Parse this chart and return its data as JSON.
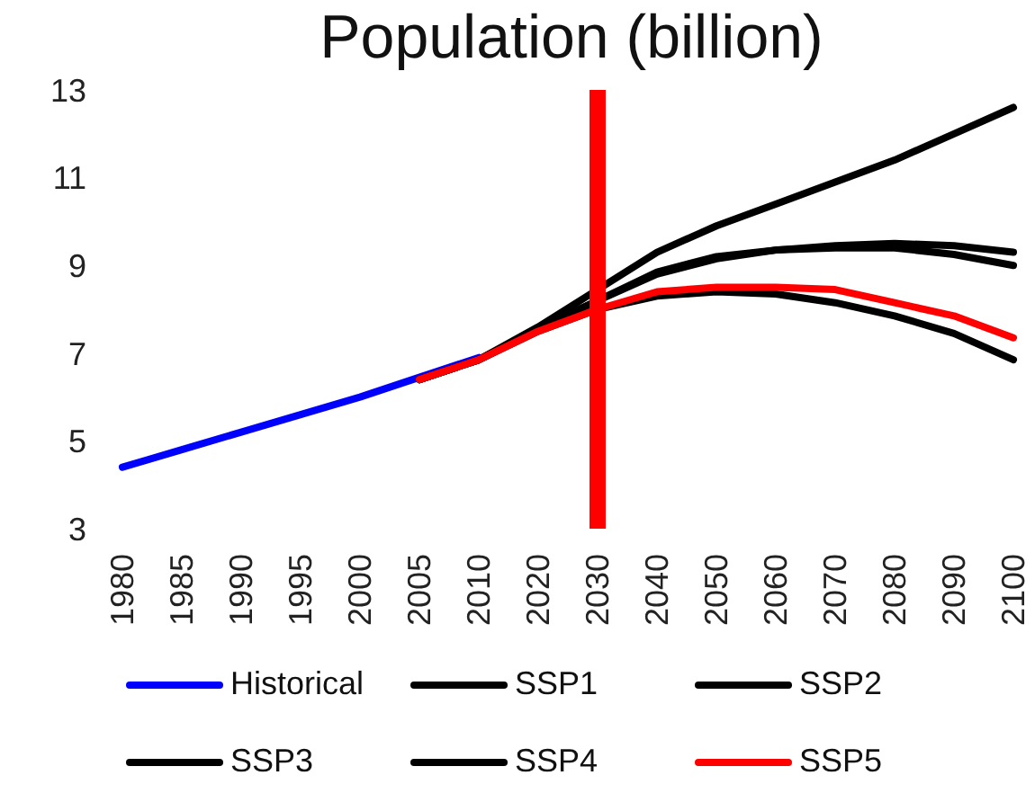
{
  "chart_data": {
    "type": "line",
    "title": "Population (billion)",
    "categories": [
      "1980",
      "1985",
      "1990",
      "1995",
      "2000",
      "2005",
      "2010",
      "2020",
      "2030",
      "2040",
      "2050",
      "2060",
      "2070",
      "2080",
      "2090",
      "2100"
    ],
    "series": [
      {
        "name": "Historical",
        "color": "#0000ff",
        "values": [
          4.4,
          4.8,
          5.2,
          5.6,
          6.0,
          6.45,
          6.9,
          null,
          null,
          null,
          null,
          null,
          null,
          null,
          null,
          null
        ]
      },
      {
        "name": "SSP1",
        "color": "#000000",
        "values": [
          null,
          null,
          null,
          null,
          null,
          6.4,
          6.85,
          7.5,
          8.0,
          8.3,
          8.4,
          8.35,
          8.15,
          7.85,
          7.45,
          6.85
        ]
      },
      {
        "name": "SSP2",
        "color": "#000000",
        "values": [
          null,
          null,
          null,
          null,
          null,
          6.4,
          6.85,
          7.55,
          8.2,
          8.85,
          9.2,
          9.35,
          9.45,
          9.5,
          9.45,
          9.3
        ]
      },
      {
        "name": "SSP3",
        "color": "#000000",
        "values": [
          null,
          null,
          null,
          null,
          null,
          6.4,
          6.85,
          7.6,
          8.45,
          9.3,
          9.9,
          10.4,
          10.9,
          11.4,
          12.0,
          12.6
        ]
      },
      {
        "name": "SSP4",
        "color": "#000000",
        "values": [
          null,
          null,
          null,
          null,
          null,
          6.4,
          6.85,
          7.55,
          8.2,
          8.8,
          9.15,
          9.35,
          9.4,
          9.4,
          9.25,
          9.0
        ]
      },
      {
        "name": "SSP5",
        "color": "#ff0000",
        "values": [
          null,
          null,
          null,
          null,
          null,
          6.4,
          6.85,
          7.5,
          8.0,
          8.4,
          8.5,
          8.5,
          8.45,
          8.15,
          7.85,
          7.35
        ]
      }
    ],
    "ylim": [
      3,
      13
    ],
    "yticks": [
      3,
      5,
      7,
      9,
      11,
      13
    ],
    "grid": false,
    "legend": "bottom",
    "marker": "none",
    "line_style": "solid",
    "ref_lines": [
      {
        "axis": "x",
        "value": "2030",
        "color": "#ff0000"
      }
    ]
  }
}
